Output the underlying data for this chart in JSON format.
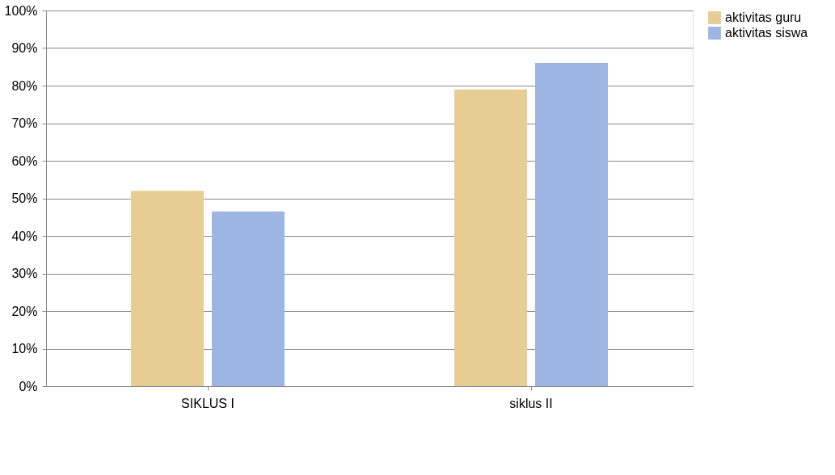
{
  "chart_data": {
    "type": "bar",
    "categories": [
      "SIKLUS I",
      "siklus II"
    ],
    "series": [
      {
        "name": "aktivitas guru",
        "color": "#e6cd93",
        "values": [
          52,
          79
        ]
      },
      {
        "name": "aktivitas siswa",
        "color": "#9db5e2",
        "values": [
          46.5,
          86
        ]
      }
    ],
    "ylim": [
      0,
      100
    ],
    "yticks": [
      {
        "value": 0,
        "label": "0%"
      },
      {
        "value": 10,
        "label": "10%"
      },
      {
        "value": 20,
        "label": "20%"
      },
      {
        "value": 30,
        "label": "30%"
      },
      {
        "value": 40,
        "label": "40%"
      },
      {
        "value": 50,
        "label": "50%"
      },
      {
        "value": 60,
        "label": "60%"
      },
      {
        "value": 70,
        "label": "70%"
      },
      {
        "value": 80,
        "label": "80%"
      },
      {
        "value": 90,
        "label": "90%"
      },
      {
        "value": 100,
        "label": "100%"
      }
    ],
    "grid": "y",
    "legend": "right"
  }
}
